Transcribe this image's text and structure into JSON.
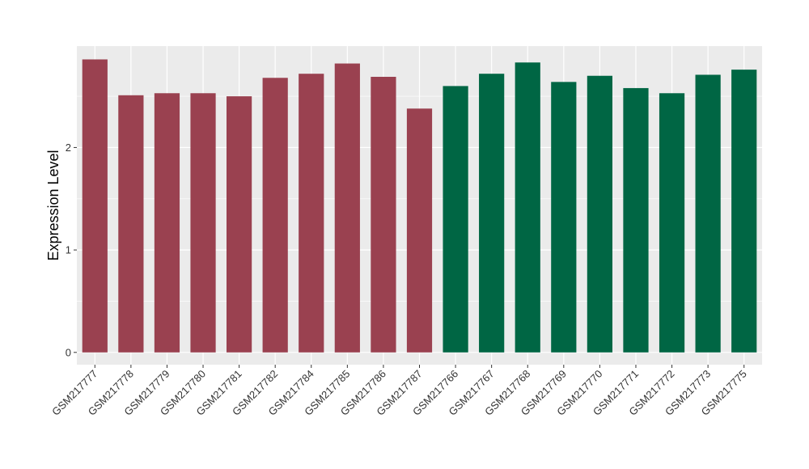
{
  "chart_data": {
    "type": "bar",
    "title": "",
    "xlabel": "",
    "ylabel": "Expression Level",
    "ylim": [
      -0.12,
      2.99
    ],
    "yticks": [
      0,
      1,
      2
    ],
    "grid": true,
    "legend": "none",
    "categories": [
      "GSM217777",
      "GSM217778",
      "GSM217779",
      "GSM217780",
      "GSM217781",
      "GSM217782",
      "GSM217784",
      "GSM217785",
      "GSM217786",
      "GSM217787",
      "GSM217766",
      "GSM217767",
      "GSM217768",
      "GSM217769",
      "GSM217770",
      "GSM217771",
      "GSM217772",
      "GSM217773",
      "GSM217775"
    ],
    "values": [
      2.86,
      2.51,
      2.53,
      2.53,
      2.5,
      2.68,
      2.72,
      2.82,
      2.69,
      2.38,
      2.6,
      2.72,
      2.83,
      2.64,
      2.7,
      2.58,
      2.53,
      2.71,
      2.76
    ],
    "group_colors": [
      "#9a4150",
      "#9a4150",
      "#9a4150",
      "#9a4150",
      "#9a4150",
      "#9a4150",
      "#9a4150",
      "#9a4150",
      "#9a4150",
      "#9a4150",
      "#006644",
      "#006644",
      "#006644",
      "#006644",
      "#006644",
      "#006644",
      "#006644",
      "#006644",
      "#006644"
    ],
    "panel_color": "#ebebeb",
    "grid_color": "#ffffff"
  }
}
